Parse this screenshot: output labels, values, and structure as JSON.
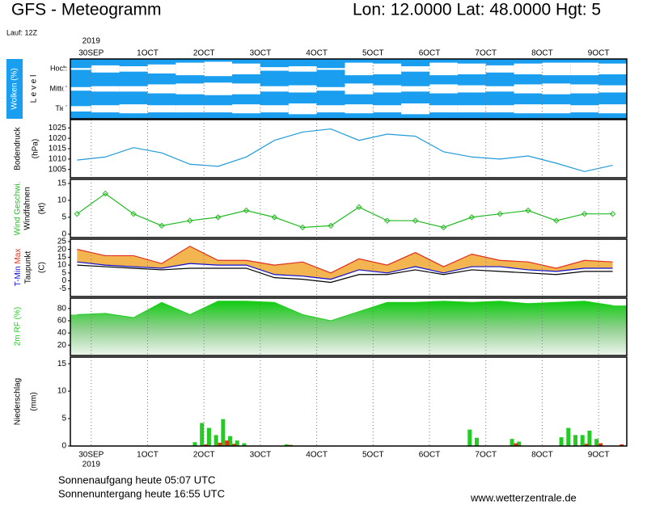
{
  "header": {
    "title": "GFS - Meteogramm",
    "location": "Lon: 12.0000 Lat: 48.0000 Hgt: 5",
    "run": "Lauf: 12Z"
  },
  "footer": {
    "sunrise": "Sonnenaufgang heute 05:07 UTC",
    "sunset": "Sonnenuntergang heute 16:55 UTC",
    "source": "www.wetterzentrale.de"
  },
  "chart_data": [
    {
      "type": "heatmap",
      "ylabel": "Wolken (%)",
      "unit": "L e v e l",
      "year": "2019",
      "color": "#1a9ef0",
      "xlim": [
        -0.37,
        9.5
      ],
      "xticks": [
        {
          "value": 0,
          "label": "30SEP"
        },
        {
          "value": 1,
          "label": "1OCT"
        },
        {
          "value": 2,
          "label": "2OCT"
        },
        {
          "value": 3,
          "label": "3OCT"
        },
        {
          "value": 4,
          "label": "4OCT"
        },
        {
          "value": 5,
          "label": "5OCT"
        },
        {
          "value": 6,
          "label": "6OCT"
        },
        {
          "value": 7,
          "label": "7OCT"
        },
        {
          "value": 8,
          "label": "8OCT"
        },
        {
          "value": 9,
          "label": "9OCT"
        }
      ],
      "x": [
        -0.25,
        0.25,
        0.75,
        1.25,
        1.75,
        2.25,
        2.75,
        3.25,
        3.75,
        4.25,
        4.75,
        5.25,
        5.75,
        6.25,
        6.75,
        7.25,
        7.75,
        8.25,
        8.75,
        9.25
      ],
      "series": [
        {
          "name": "Hoch",
          "values": [
            90,
            60,
            70,
            50,
            30,
            20,
            40,
            80,
            70,
            90,
            30,
            40,
            70,
            30,
            40,
            60,
            40,
            30,
            30,
            40
          ]
        },
        {
          "name": "Mittel",
          "values": [
            80,
            70,
            70,
            50,
            40,
            30,
            40,
            70,
            60,
            80,
            40,
            60,
            70,
            50,
            60,
            70,
            50,
            40,
            50,
            60
          ]
        },
        {
          "name": "Tief",
          "values": [
            70,
            60,
            50,
            60,
            60,
            60,
            50,
            60,
            40,
            60,
            50,
            60,
            40,
            60,
            60,
            60,
            50,
            50,
            60,
            50
          ]
        }
      ]
    },
    {
      "type": "line",
      "ylabel": "Bodendruck",
      "unit": "(hPa)",
      "xlim": [
        -0.37,
        9.5
      ],
      "ylim": [
        1001,
        1029
      ],
      "yticks": [
        1025,
        1020,
        1015,
        1010,
        1005
      ],
      "x": [
        -0.25,
        0.25,
        0.75,
        1.25,
        1.75,
        2.25,
        2.75,
        3.25,
        3.75,
        4.25,
        4.75,
        5.25,
        5.75,
        6.25,
        6.75,
        7.25,
        7.75,
        8.25,
        8.75,
        9.25
      ],
      "series": [
        {
          "color": "#1f9bd8",
          "values": [
            1009.5,
            1011,
            1015.5,
            1013,
            1007.5,
            1006.5,
            1011,
            1019,
            1023,
            1024.5,
            1019,
            1022,
            1021,
            1013.5,
            1011,
            1010,
            1011.5,
            1008,
            1004,
            1007
          ]
        }
      ]
    },
    {
      "type": "line",
      "ylabel": "Windfahnen",
      "unit": "(kt)",
      "xlim": [
        -0.37,
        9.5
      ],
      "ylim": [
        -1,
        16.2
      ],
      "yticks": [
        15,
        10,
        5,
        0
      ],
      "x": [
        -0.25,
        0.25,
        0.75,
        1.25,
        1.75,
        2.25,
        2.75,
        3.25,
        3.75,
        4.25,
        4.75,
        5.25,
        5.75,
        6.25,
        6.75,
        7.25,
        7.75,
        8.25,
        8.75,
        9.25
      ],
      "series": [
        {
          "name": "Wind Geschwi.",
          "color": "#22bb22",
          "markers": true,
          "values": [
            6,
            12,
            6,
            2.5,
            4,
            5,
            7,
            5,
            2,
            2.5,
            8,
            4,
            4,
            2,
            5,
            6,
            7,
            4,
            6,
            6
          ]
        }
      ]
    },
    {
      "type": "line",
      "unit": "(C)",
      "fill": "#f0a830",
      "xlim": [
        -0.37,
        9.5
      ],
      "ylim": [
        -10,
        26.5
      ],
      "yticks": [
        25,
        20,
        15,
        10,
        5,
        0,
        -5
      ],
      "x": [
        -0.25,
        0.25,
        0.75,
        1.25,
        1.75,
        2.25,
        2.75,
        3.25,
        3.75,
        4.25,
        4.75,
        5.25,
        5.75,
        6.25,
        6.75,
        7.25,
        7.75,
        8.25,
        8.75,
        9.25
      ],
      "series": [
        {
          "name": "Max",
          "color": "#e03020",
          "values": [
            20,
            16,
            16,
            11,
            22,
            13,
            13,
            10,
            12,
            5,
            14,
            10,
            18,
            9,
            17,
            13,
            12,
            8,
            13,
            12
          ]
        },
        {
          "name": "T-Min",
          "color": "#1010d0",
          "values": [
            12,
            10,
            9,
            8,
            11,
            10,
            10,
            4,
            3,
            1,
            7,
            5,
            9,
            5,
            9,
            9,
            7,
            6,
            8,
            8
          ]
        },
        {
          "name": "Taupunkt",
          "color": "#000000",
          "values": [
            10,
            9,
            8,
            7,
            8,
            8,
            8,
            2,
            1,
            -1,
            4,
            4,
            7,
            4,
            7,
            6,
            5,
            4,
            6,
            6
          ]
        }
      ]
    },
    {
      "type": "area",
      "ylabel": "2m RF (%)",
      "xlim": [
        -0.37,
        9.5
      ],
      "ylim": [
        3,
        97
      ],
      "yticks": [
        80,
        60,
        40,
        20
      ],
      "x": [
        -0.25,
        0.25,
        0.75,
        1.25,
        1.75,
        2.25,
        2.75,
        3.25,
        3.75,
        4.25,
        4.75,
        5.25,
        5.75,
        6.25,
        6.75,
        7.25,
        7.75,
        8.25,
        8.75,
        9.25
      ],
      "series": [
        {
          "color": "#1ecc1e",
          "values": [
            70,
            72,
            65,
            90,
            70,
            92,
            92,
            90,
            70,
            60,
            75,
            90,
            90,
            92,
            90,
            92,
            88,
            90,
            92,
            85
          ]
        }
      ]
    },
    {
      "type": "bar",
      "ylabel": "Niederschlag",
      "unit": "(mm)",
      "year": "2019",
      "xlim": [
        -0.37,
        9.5
      ],
      "xticks": [
        {
          "value": 0,
          "label": "30SEP"
        },
        {
          "value": 1,
          "label": "1OCT"
        },
        {
          "value": 2,
          "label": "2OCT"
        },
        {
          "value": 3,
          "label": "3OCT"
        },
        {
          "value": 4,
          "label": "4OCT"
        },
        {
          "value": 5,
          "label": "5OCT"
        },
        {
          "value": 6,
          "label": "6OCT"
        },
        {
          "value": 7,
          "label": "7OCT"
        },
        {
          "value": 8,
          "label": "8OCT"
        },
        {
          "value": 9,
          "label": "9OCT"
        }
      ],
      "ylim": [
        0,
        16.2
      ],
      "yticks": [
        15,
        10,
        5,
        0
      ],
      "x": [
        1.875,
        2.0,
        2.125,
        2.25,
        2.375,
        2.5,
        2.625,
        2.75,
        3.5,
        6.75,
        6.875,
        7.5,
        7.625,
        8.375,
        8.5,
        8.625,
        8.75,
        8.875,
        9.0,
        9.375
      ],
      "series": [
        {
          "color": "#22cc22",
          "values": [
            0.7,
            4.2,
            3.3,
            2.0,
            4.9,
            1.8,
            1.0,
            0.5,
            0.3,
            3.0,
            1.5,
            1.3,
            0.8,
            1.6,
            3.3,
            2.0,
            2.0,
            2.8,
            1.3,
            0
          ]
        },
        {
          "color": "#dd3311",
          "values": [
            0,
            0.3,
            0,
            0.6,
            1.0,
            0.4,
            0,
            0,
            0.2,
            0,
            0,
            0.5,
            0,
            0,
            0,
            0,
            0.4,
            0,
            0.5,
            0.3
          ]
        }
      ]
    }
  ]
}
